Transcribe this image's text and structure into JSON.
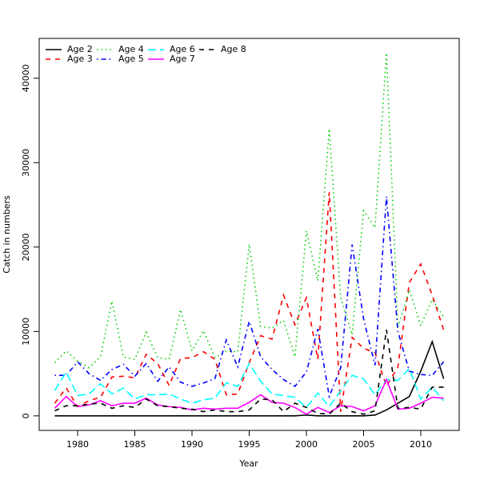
{
  "chart_data": {
    "type": "line",
    "x_label": "Year",
    "y_label": "Catch in numbers",
    "x": [
      1978,
      1979,
      1980,
      1981,
      1982,
      1983,
      1984,
      1985,
      1986,
      1987,
      1988,
      1989,
      1990,
      1991,
      1992,
      1993,
      1994,
      1995,
      1996,
      1997,
      1998,
      1999,
      2000,
      2001,
      2002,
      2003,
      2004,
      2005,
      2006,
      2007,
      2008,
      2009,
      2010,
      2011,
      2012
    ],
    "xlim": [
      1976.64,
      2013.36
    ],
    "xticks": [
      1980,
      1985,
      1990,
      1995,
      2000,
      2005,
      2010
    ],
    "ylim": [
      -1720,
      44720
    ],
    "yticks": [
      0,
      10000,
      20000,
      30000,
      40000
    ],
    "legend": "top-left",
    "series": [
      {
        "name": "Age 2",
        "color": "#000000",
        "linestyle": "solid",
        "values": [
          0,
          0,
          0,
          0,
          0,
          0,
          0,
          0,
          0,
          0,
          0,
          0,
          0,
          0,
          0,
          0,
          0,
          0,
          0,
          0,
          0,
          0,
          100,
          0,
          0,
          0,
          0,
          0,
          100,
          700,
          1500,
          2300,
          5300,
          8800,
          4400
        ]
      },
      {
        "name": "Age 3",
        "color": "#ff0000",
        "linestyle": "dashed",
        "values": [
          1500,
          3300,
          1100,
          1800,
          2200,
          4600,
          4700,
          4500,
          7300,
          6200,
          3600,
          6800,
          6900,
          7600,
          6700,
          2500,
          2600,
          6300,
          9500,
          9100,
          14300,
          10800,
          14000,
          6700,
          26500,
          500,
          9300,
          8000,
          7500,
          3500,
          5800,
          15800,
          18000,
          14300,
          10200
        ]
      },
      {
        "name": "Age 4",
        "color": "#00cd00",
        "linestyle": "dotted",
        "values": [
          6300,
          7700,
          6500,
          5700,
          7000,
          13600,
          7000,
          6700,
          9900,
          6900,
          6700,
          12600,
          7700,
          10100,
          6900,
          7700,
          7600,
          20300,
          10600,
          10400,
          11300,
          7000,
          21900,
          16000,
          34000,
          14000,
          9600,
          24300,
          22300,
          43000,
          10500,
          14900,
          10700,
          13800,
          11700
        ]
      },
      {
        "name": "Age 5",
        "color": "#0000ff",
        "linestyle": "dotdash",
        "values": [
          4800,
          4800,
          6400,
          5000,
          4200,
          5500,
          6100,
          4700,
          6200,
          4100,
          5800,
          4000,
          3500,
          3900,
          4400,
          9000,
          5800,
          11200,
          7000,
          5500,
          4300,
          3500,
          5200,
          10300,
          2300,
          5700,
          20300,
          11500,
          6000,
          26000,
          10000,
          5300,
          4900,
          4800,
          6400
        ]
      },
      {
        "name": "Age 6",
        "color": "#00ffff",
        "linestyle": "longdash",
        "values": [
          3000,
          5200,
          2400,
          2600,
          3800,
          2600,
          3300,
          2000,
          2500,
          2500,
          2600,
          2000,
          1500,
          1900,
          2100,
          3900,
          3500,
          6200,
          4100,
          2600,
          2400,
          2200,
          1000,
          2700,
          1100,
          3000,
          4800,
          4400,
          2500,
          4300,
          4200,
          5600,
          2000,
          3400,
          1800
        ]
      },
      {
        "name": "Age 7",
        "color": "#ff00ff",
        "linestyle": "solid",
        "values": [
          900,
          2300,
          1100,
          1300,
          1800,
          1200,
          1500,
          1500,
          2100,
          1300,
          1100,
          1000,
          700,
          900,
          800,
          900,
          900,
          1600,
          2500,
          1600,
          1500,
          1000,
          200,
          1000,
          400,
          1200,
          1100,
          600,
          1200,
          4300,
          800,
          900,
          1500,
          2200,
          2100
        ]
      },
      {
        "name": "Age 8",
        "color": "#000000",
        "linestyle": "dashed",
        "values": [
          600,
          1200,
          1200,
          1400,
          1500,
          900,
          1200,
          1000,
          2000,
          1200,
          1100,
          900,
          800,
          500,
          700,
          500,
          500,
          700,
          2000,
          1900,
          500,
          1500,
          1000,
          300,
          200,
          1500,
          500,
          200,
          600,
          10200,
          900,
          1000,
          800,
          3400,
          3400
        ]
      }
    ]
  }
}
